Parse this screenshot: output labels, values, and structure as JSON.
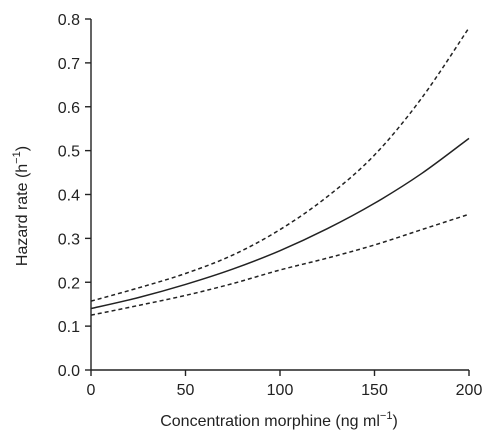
{
  "chart_data": {
    "type": "line",
    "xlabel": "Concentration morphine (ng ml",
    "xlabel_sup": "−1",
    "xlabel_end": ")",
    "ylabel": "Hazard rate (h",
    "ylabel_sup": "−1",
    "ylabel_end": ")",
    "xlim": [
      0,
      200
    ],
    "ylim": [
      0.0,
      0.8
    ],
    "xticks": [
      0,
      50,
      100,
      150,
      200
    ],
    "xtick_labels": [
      "0",
      "50",
      "100",
      "150",
      "200"
    ],
    "yticks": [
      0.0,
      0.1,
      0.2,
      0.3,
      0.4,
      0.5,
      0.6,
      0.7,
      0.8
    ],
    "ytick_labels": [
      "0.0",
      "0.1",
      "0.2",
      "0.3",
      "0.4",
      "0.5",
      "0.6",
      "0.7",
      "0.8"
    ],
    "grid": false,
    "series": [
      {
        "style": "solid",
        "color": "#222222",
        "x": [
          0,
          25,
          50,
          75,
          100,
          125,
          150,
          175,
          200
        ],
        "y": [
          0.14,
          0.165,
          0.195,
          0.23,
          0.272,
          0.322,
          0.38,
          0.448,
          0.528
        ]
      },
      {
        "style": "dashed",
        "color": "#222222",
        "x": [
          0,
          25,
          50,
          75,
          100,
          125,
          150,
          175,
          200
        ],
        "y": [
          0.157,
          0.187,
          0.22,
          0.262,
          0.32,
          0.395,
          0.49,
          0.62,
          0.78
        ]
      },
      {
        "style": "dashed",
        "color": "#222222",
        "x": [
          0,
          25,
          50,
          75,
          100,
          125,
          150,
          175,
          200
        ],
        "y": [
          0.125,
          0.147,
          0.17,
          0.197,
          0.228,
          0.255,
          0.285,
          0.32,
          0.355
        ]
      }
    ]
  }
}
